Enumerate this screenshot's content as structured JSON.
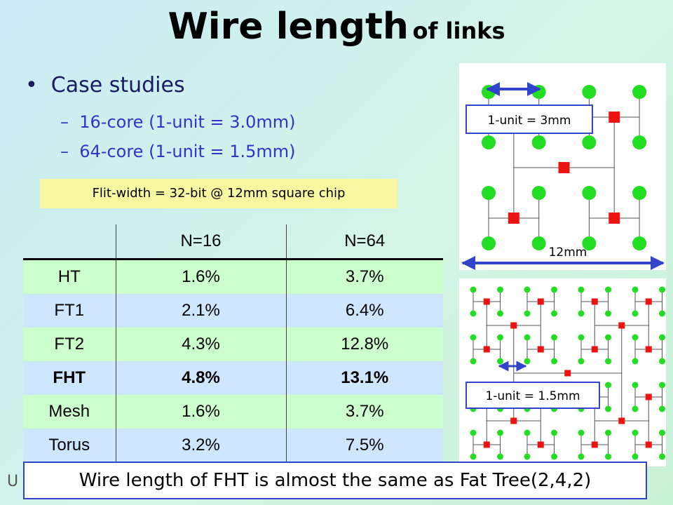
{
  "title": {
    "main": "Wire length",
    "suffix": "of links"
  },
  "bullets": {
    "text": "Case studies",
    "items": [
      "16-core (1-unit = 3.0mm)",
      "64-core (1-unit = 1.5mm)"
    ]
  },
  "note": "Flit-width = 32-bit @ 12mm square chip",
  "table": {
    "header": [
      "N=16",
      "N=64"
    ],
    "rows": [
      [
        "HT",
        "1.6%",
        "3.7%"
      ],
      [
        "FT1",
        "2.1%",
        "6.4%"
      ],
      [
        "FT2",
        "4.3%",
        "12.8%"
      ],
      [
        "FHT",
        "4.8%",
        "13.1%"
      ],
      [
        "Mesh",
        "1.6%",
        "3.7%"
      ],
      [
        "Torus",
        "3.2%",
        "7.5%"
      ]
    ]
  },
  "diagram": {
    "unit_16": "1-unit = 3mm",
    "chip": "12mm",
    "unit_64": "1-unit = 1.5mm"
  },
  "footer": {
    "fragment": "U",
    "message": "Wire length of FHT is almost the same as Fat Tree(2,4,2)"
  }
}
